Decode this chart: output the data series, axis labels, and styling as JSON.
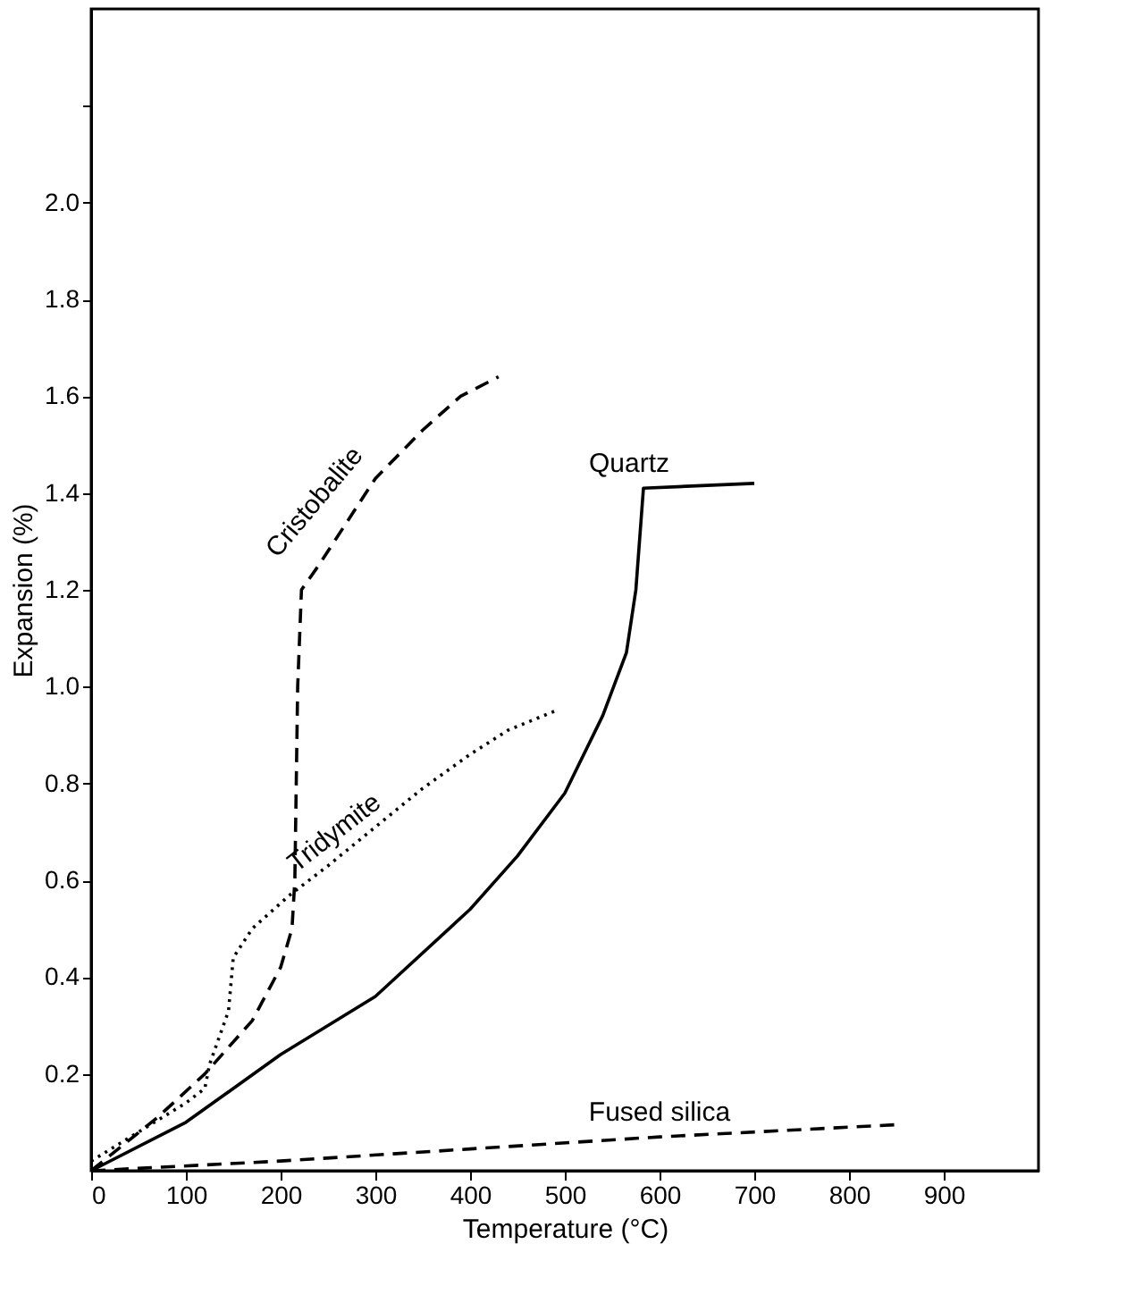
{
  "chart_data": {
    "type": "line",
    "xlabel": "Temperature (°C)",
    "ylabel": "Expansion (%)",
    "xlim": [
      0,
      1000
    ],
    "ylim": [
      0,
      2.4
    ],
    "xticks": [
      0,
      100,
      200,
      300,
      400,
      500,
      600,
      700,
      800,
      900
    ],
    "yticks": [
      0.2,
      0.4,
      0.6,
      0.8,
      {
        "value": 1,
        "label": "1.0"
      },
      1.2,
      1.4,
      1.6,
      1.8,
      {
        "value": 2,
        "label": "2.0"
      },
      {
        "value": 2.2,
        "label": null
      }
    ],
    "grid": false,
    "marker": "none",
    "series": [
      {
        "name": "Quartz",
        "color": "#000000",
        "line_style": "solid",
        "x": [
          0,
          100,
          200,
          300,
          400,
          450,
          500,
          540,
          565,
          575,
          583,
          700
        ],
        "values": [
          0,
          0.1,
          0.24,
          0.36,
          0.54,
          0.65,
          0.78,
          0.94,
          1.07,
          1.2,
          1.41,
          1.42
        ]
      },
      {
        "name": "Cristobalite",
        "color": "#000000",
        "line_style": "dashed",
        "x": [
          0,
          70,
          120,
          170,
          200,
          212,
          215,
          218,
          222,
          240,
          300,
          350,
          390,
          430
        ],
        "values": [
          0,
          0.11,
          0.2,
          0.31,
          0.42,
          0.5,
          0.6,
          1.0,
          1.2,
          1.25,
          1.43,
          1.53,
          1.6,
          1.64
        ]
      },
      {
        "name": "Tridymite",
        "color": "#000000",
        "line_style": "dotted",
        "x": [
          0,
          50,
          100,
          120,
          125,
          145,
          150,
          170,
          210,
          250,
          300,
          350,
          400,
          440,
          490
        ],
        "values": [
          0.02,
          0.08,
          0.14,
          0.17,
          0.22,
          0.33,
          0.44,
          0.5,
          0.57,
          0.63,
          0.71,
          0.79,
          0.86,
          0.91,
          0.95
        ]
      },
      {
        "name": "Fused silica",
        "color": "#000000",
        "line_style": "dashed",
        "x": [
          0,
          200,
          400,
          600,
          850
        ],
        "values": [
          0,
          0.02,
          0.045,
          0.07,
          0.095
        ]
      }
    ]
  }
}
